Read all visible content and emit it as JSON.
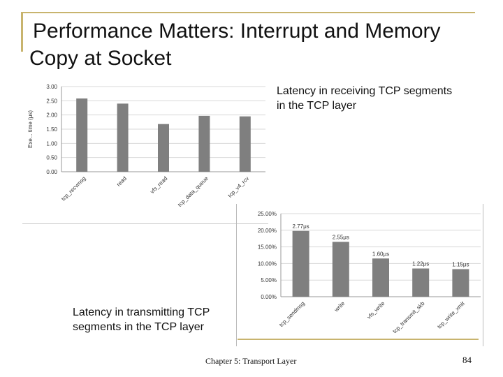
{
  "slide": {
    "title_line1": "Performance Matters: Interrupt and Memory",
    "title_line2": "Copy at Socket",
    "caption_receive": "Latency in receiving TCP segments in the TCP layer",
    "caption_transmit": "Latency in transmitting TCP segments in the TCP layer",
    "footer": "Chapter 5: Transport Layer",
    "page_number": "84"
  },
  "colors": {
    "bar": "#7f7f7f",
    "grid": "#d9d9d9",
    "accent_line": "#c8b46e"
  },
  "chart_data": [
    {
      "type": "bar",
      "categories": [
        "tcp_recvmsg",
        "read",
        "vfs_read",
        "tcp_data_queue",
        "tcp_v4_rcv"
      ],
      "values": [
        2.58,
        2.4,
        1.68,
        1.97,
        1.95
      ],
      "ylabel": "Exe... time (μs)",
      "yticks": [
        "3.00",
        "2.50",
        "2.00",
        "1.50",
        "1.00",
        "0.50",
        "0.00"
      ],
      "ylim": [
        0,
        3
      ],
      "grid": true
    },
    {
      "type": "bar",
      "categories": [
        "tcp_sendmsg",
        "write",
        "vfs_write",
        "tcp_transmit_skb",
        "tcp_write_xmit"
      ],
      "values": [
        19.8,
        16.5,
        11.5,
        8.5,
        8.3
      ],
      "data_labels": [
        "2.77μs",
        "2.55μs",
        "1.60μs",
        "1.22μs",
        "1.15μs"
      ],
      "yticks": [
        "25.00%",
        "20.00%",
        "15.00%",
        "10.00%",
        "5.00%",
        "0.00%"
      ],
      "ylim": [
        0,
        25
      ],
      "grid": true
    }
  ]
}
